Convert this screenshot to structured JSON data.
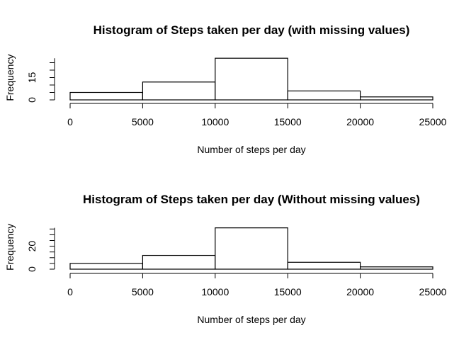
{
  "chart_data": [
    {
      "type": "bar",
      "title": "Histogram of Steps taken per day (with missing values)",
      "xlabel": "Number of steps per day",
      "ylabel": "Frequency",
      "bins": [
        [
          0,
          5000
        ],
        [
          5000,
          10000
        ],
        [
          10000,
          15000
        ],
        [
          15000,
          20000
        ],
        [
          20000,
          25000
        ]
      ],
      "values": [
        5,
        12,
        28,
        6,
        2
      ],
      "xlim": [
        0,
        25000
      ],
      "ylim": [
        0,
        28
      ],
      "x_ticks": [
        "0",
        "5000",
        "10000",
        "15000",
        "20000",
        "25000"
      ],
      "y_ticks": [
        "0",
        "15"
      ],
      "grid": false
    },
    {
      "type": "bar",
      "title": "Histogram of Steps taken per day (Without missing values)",
      "xlabel": "Number of steps per day",
      "ylabel": "Frequency",
      "bins": [
        [
          0,
          5000
        ],
        [
          5000,
          10000
        ],
        [
          10000,
          15000
        ],
        [
          15000,
          20000
        ],
        [
          20000,
          25000
        ]
      ],
      "values": [
        5,
        12,
        36,
        6,
        2
      ],
      "xlim": [
        0,
        25000
      ],
      "ylim": [
        0,
        36
      ],
      "x_ticks": [
        "0",
        "5000",
        "10000",
        "15000",
        "20000",
        "25000"
      ],
      "y_ticks": [
        "0",
        "20"
      ],
      "grid": false
    }
  ]
}
